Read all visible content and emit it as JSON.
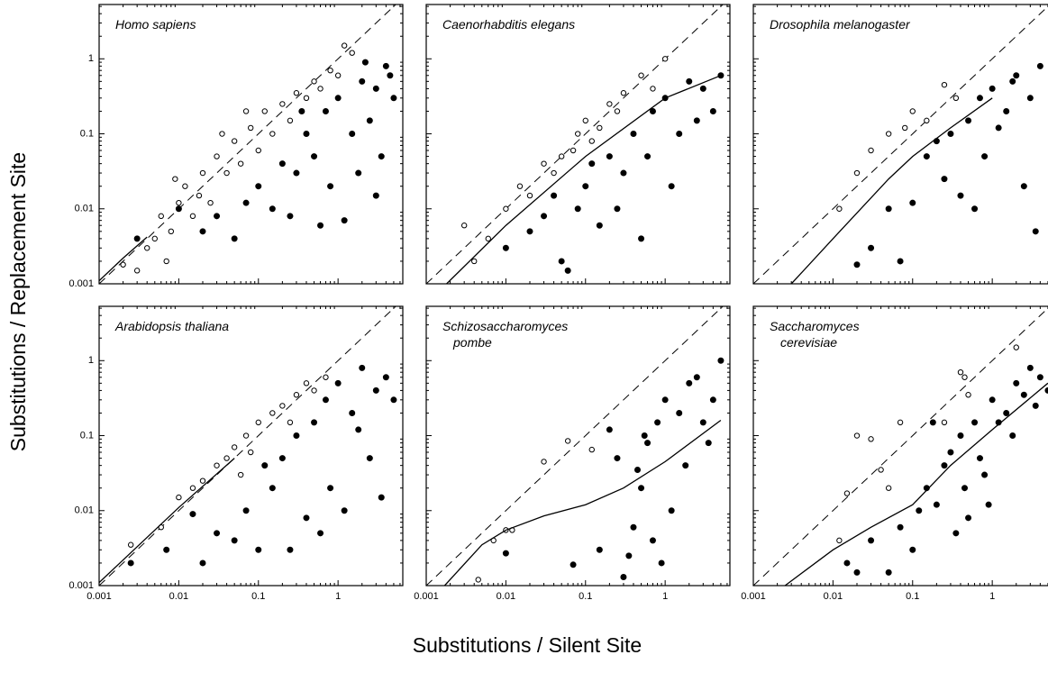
{
  "figure": {
    "x_label": "Substitutions / Silent Site",
    "y_label": "Substitutions / Replacement Site"
  },
  "chart_data": [
    {
      "type": "scatter",
      "title": [
        "Homo sapiens"
      ],
      "log": true,
      "identity_line": true,
      "xlim": [
        0.001,
        6.5
      ],
      "ylim": [
        0.001,
        5.3
      ],
      "xticks": [
        0.001,
        0.01,
        0.1,
        1
      ],
      "yticks": [
        0.001,
        0.01,
        0.1,
        1
      ],
      "series": [
        {
          "marker": "open",
          "color": "#000000",
          "x": [
            0.002,
            0.003,
            0.004,
            0.005,
            0.006,
            0.008,
            0.01,
            0.012,
            0.015,
            0.02,
            0.025,
            0.03,
            0.04,
            0.05,
            0.06,
            0.08,
            0.1,
            0.12,
            0.15,
            0.2,
            0.25,
            0.3,
            0.4,
            0.5,
            0.6,
            0.8,
            1,
            1.2,
            1.5,
            0.007,
            0.009,
            0.018,
            0.035,
            0.07
          ],
          "values": [
            0.0018,
            0.0015,
            0.003,
            0.004,
            0.008,
            0.005,
            0.012,
            0.02,
            0.008,
            0.03,
            0.012,
            0.05,
            0.03,
            0.08,
            0.04,
            0.12,
            0.06,
            0.2,
            0.1,
            0.25,
            0.15,
            0.35,
            0.3,
            0.5,
            0.4,
            0.7,
            0.6,
            1.5,
            1.2,
            0.002,
            0.025,
            0.015,
            0.1,
            0.2
          ]
        },
        {
          "marker": "filled",
          "color": "#000000",
          "x": [
            0.003,
            0.01,
            0.02,
            0.03,
            0.05,
            0.07,
            0.1,
            0.15,
            0.2,
            0.3,
            0.4,
            0.5,
            0.7,
            1,
            1.5,
            2,
            3,
            4,
            5,
            0.8,
            1.2,
            2.5,
            3.5,
            0.6,
            0.25,
            1.8,
            4.5,
            0.35,
            2.2,
            3
          ],
          "values": [
            0.004,
            0.01,
            0.005,
            0.008,
            0.004,
            0.012,
            0.02,
            0.01,
            0.04,
            0.03,
            0.1,
            0.05,
            0.2,
            0.3,
            0.1,
            0.5,
            0.4,
            0.8,
            0.3,
            0.02,
            0.007,
            0.15,
            0.05,
            0.006,
            0.008,
            0.03,
            0.6,
            0.2,
            0.9,
            0.015
          ]
        },
        {
          "marker": "line",
          "color": "#000000",
          "x": [
            0.001,
            0.002,
            0.004
          ],
          "values": [
            0.0011,
            0.0022,
            0.0042
          ]
        }
      ]
    },
    {
      "type": "scatter",
      "title": [
        "Caenorhabditis elegans"
      ],
      "log": true,
      "identity_line": true,
      "xlim": [
        0.001,
        6.5
      ],
      "ylim": [
        0.001,
        5.3
      ],
      "xticks": [
        0.001,
        0.01,
        0.1,
        1
      ],
      "yticks": [
        0.001,
        0.01,
        0.1,
        1
      ],
      "series": [
        {
          "marker": "open",
          "color": "#000000",
          "x": [
            0.003,
            0.004,
            0.006,
            0.01,
            0.015,
            0.02,
            0.03,
            0.05,
            0.07,
            0.1,
            0.15,
            0.2,
            0.3,
            0.5,
            0.7,
            1,
            0.04,
            0.08,
            0.12,
            0.25
          ],
          "values": [
            0.006,
            0.002,
            0.004,
            0.01,
            0.02,
            0.015,
            0.04,
            0.05,
            0.06,
            0.15,
            0.12,
            0.25,
            0.35,
            0.6,
            0.4,
            1,
            0.03,
            0.1,
            0.08,
            0.2
          ]
        },
        {
          "marker": "filled",
          "color": "#000000",
          "x": [
            0.01,
            0.02,
            0.03,
            0.05,
            0.08,
            0.1,
            0.15,
            0.2,
            0.3,
            0.4,
            0.5,
            0.7,
            1,
            1.5,
            2,
            3,
            4,
            5,
            0.06,
            0.25,
            0.6,
            1.2,
            2.5,
            0.04,
            0.12
          ],
          "values": [
            0.003,
            0.005,
            0.008,
            0.002,
            0.01,
            0.02,
            0.006,
            0.05,
            0.03,
            0.1,
            0.004,
            0.2,
            0.3,
            0.1,
            0.5,
            0.4,
            0.2,
            0.6,
            0.0015,
            0.01,
            0.05,
            0.02,
            0.15,
            0.015,
            0.04
          ]
        },
        {
          "marker": "line",
          "color": "#000000",
          "x": [
            0.0018,
            0.01,
            0.1,
            1,
            5
          ],
          "values": [
            0.001,
            0.006,
            0.05,
            0.3,
            0.6
          ]
        }
      ]
    },
    {
      "type": "scatter",
      "title": [
        "Drosophila melanogaster"
      ],
      "log": true,
      "identity_line": true,
      "xlim": [
        0.001,
        6.5
      ],
      "ylim": [
        0.001,
        5.3
      ],
      "xticks": [
        0.001,
        0.01,
        0.1,
        1
      ],
      "yticks": [
        0.001,
        0.01,
        0.1,
        1
      ],
      "series": [
        {
          "marker": "open",
          "color": "#000000",
          "x": [
            0.012,
            0.02,
            0.03,
            0.05,
            0.08,
            0.1,
            0.15,
            0.25,
            0.35
          ],
          "values": [
            0.01,
            0.03,
            0.06,
            0.1,
            0.12,
            0.2,
            0.15,
            0.45,
            0.3
          ]
        },
        {
          "marker": "filled",
          "color": "#000000",
          "x": [
            0.02,
            0.03,
            0.05,
            0.07,
            0.1,
            0.15,
            0.2,
            0.3,
            0.5,
            0.7,
            1,
            1.5,
            2,
            3,
            4,
            0.8,
            1.2,
            2.5,
            0.4,
            0.6,
            3.5,
            0.25,
            1.8
          ],
          "values": [
            0.0018,
            0.003,
            0.01,
            0.002,
            0.012,
            0.05,
            0.08,
            0.1,
            0.15,
            0.3,
            0.4,
            0.2,
            0.6,
            0.3,
            0.8,
            0.05,
            0.12,
            0.02,
            0.015,
            0.01,
            0.005,
            0.025,
            0.5
          ]
        },
        {
          "marker": "line",
          "color": "#000000",
          "x": [
            0.003,
            0.01,
            0.05,
            0.1,
            0.3,
            1
          ],
          "values": [
            0.001,
            0.004,
            0.025,
            0.05,
            0.12,
            0.3
          ]
        }
      ]
    },
    {
      "type": "scatter",
      "title": [
        "Arabidopsis thaliana"
      ],
      "log": true,
      "identity_line": true,
      "xlim": [
        0.001,
        6.5
      ],
      "ylim": [
        0.001,
        5.3
      ],
      "xticks": [
        0.001,
        0.01,
        0.1,
        1
      ],
      "yticks": [
        0.001,
        0.01,
        0.1,
        1
      ],
      "series": [
        {
          "marker": "open",
          "color": "#000000",
          "x": [
            0.0025,
            0.006,
            0.01,
            0.015,
            0.02,
            0.03,
            0.04,
            0.05,
            0.07,
            0.1,
            0.15,
            0.2,
            0.3,
            0.4,
            0.5,
            0.7,
            0.08,
            0.25,
            0.06
          ],
          "values": [
            0.0035,
            0.006,
            0.015,
            0.02,
            0.025,
            0.04,
            0.05,
            0.07,
            0.1,
            0.15,
            0.2,
            0.25,
            0.35,
            0.5,
            0.4,
            0.6,
            0.06,
            0.15,
            0.03
          ]
        },
        {
          "marker": "filled",
          "color": "#000000",
          "x": [
            0.0025,
            0.007,
            0.015,
            0.02,
            0.03,
            0.05,
            0.07,
            0.1,
            0.15,
            0.2,
            0.3,
            0.5,
            0.7,
            1,
            1.5,
            2,
            3,
            4,
            5,
            0.4,
            0.8,
            1.2,
            2.5,
            0.25,
            0.6,
            3.5,
            0.12,
            1.8
          ],
          "values": [
            0.002,
            0.003,
            0.009,
            0.002,
            0.005,
            0.004,
            0.01,
            0.003,
            0.02,
            0.05,
            0.1,
            0.15,
            0.3,
            0.5,
            0.2,
            0.8,
            0.4,
            0.6,
            0.3,
            0.008,
            0.02,
            0.01,
            0.05,
            0.003,
            0.005,
            0.015,
            0.04,
            0.12
          ]
        },
        {
          "marker": "line",
          "color": "#000000",
          "x": [
            0.001,
            0.01,
            0.05
          ],
          "values": [
            0.0011,
            0.011,
            0.05
          ]
        }
      ]
    },
    {
      "type": "scatter",
      "title": [
        "Schizosaccharomyces",
        "pombe"
      ],
      "log": true,
      "identity_line": true,
      "xlim": [
        0.001,
        6.5
      ],
      "ylim": [
        0.001,
        5.3
      ],
      "xticks": [
        0.001,
        0.01,
        0.1,
        1
      ],
      "yticks": [
        0.001,
        0.01,
        0.1,
        1
      ],
      "series": [
        {
          "marker": "open",
          "color": "#000000",
          "x": [
            0.0045,
            0.007,
            0.01,
            0.012,
            0.03,
            0.06,
            0.12
          ],
          "values": [
            0.0012,
            0.004,
            0.0055,
            0.0055,
            0.045,
            0.085,
            0.065
          ]
        },
        {
          "marker": "filled",
          "color": "#000000",
          "x": [
            0.01,
            0.07,
            0.15,
            0.2,
            0.25,
            0.3,
            0.4,
            0.5,
            0.6,
            0.7,
            0.8,
            1,
            1.2,
            1.5,
            2,
            3,
            4,
            5,
            0.35,
            0.45,
            0.9,
            2.5,
            0.55,
            3.5,
            1.8
          ],
          "values": [
            0.0027,
            0.0019,
            0.003,
            0.12,
            0.05,
            0.0013,
            0.006,
            0.02,
            0.08,
            0.004,
            0.15,
            0.3,
            0.01,
            0.2,
            0.5,
            0.15,
            0.3,
            1,
            0.0025,
            0.035,
            0.002,
            0.6,
            0.1,
            0.08,
            0.04
          ]
        },
        {
          "marker": "line",
          "color": "#000000",
          "x": [
            0.0017,
            0.005,
            0.01,
            0.03,
            0.1,
            0.3,
            1,
            5
          ],
          "values": [
            0.001,
            0.0035,
            0.0055,
            0.0085,
            0.012,
            0.02,
            0.045,
            0.16
          ]
        }
      ]
    },
    {
      "type": "scatter",
      "title": [
        "Saccharomyces",
        "cerevisiae"
      ],
      "log": true,
      "identity_line": true,
      "xlim": [
        0.001,
        6.5
      ],
      "ylim": [
        0.001,
        5.3
      ],
      "xticks": [
        0.001,
        0.01,
        0.1,
        1
      ],
      "yticks": [
        0.001,
        0.01,
        0.1,
        1
      ],
      "series": [
        {
          "marker": "open",
          "color": "#000000",
          "x": [
            0.012,
            0.015,
            0.02,
            0.03,
            0.04,
            0.05,
            0.07,
            0.4,
            0.45,
            0.5,
            0.25,
            2
          ],
          "values": [
            0.004,
            0.017,
            0.1,
            0.09,
            0.035,
            0.02,
            0.15,
            0.7,
            0.6,
            0.35,
            0.15,
            1.5
          ]
        },
        {
          "marker": "filled",
          "color": "#000000",
          "x": [
            0.015,
            0.02,
            0.03,
            0.05,
            0.07,
            0.1,
            0.12,
            0.15,
            0.2,
            0.25,
            0.3,
            0.4,
            0.5,
            0.6,
            0.7,
            0.8,
            1,
            1.2,
            1.5,
            2,
            2.5,
            3,
            4,
            5,
            0.35,
            0.9,
            1.8,
            3.5,
            0.45,
            0.18
          ],
          "values": [
            0.002,
            0.0015,
            0.004,
            0.0015,
            0.006,
            0.003,
            0.01,
            0.02,
            0.012,
            0.04,
            0.06,
            0.1,
            0.008,
            0.15,
            0.05,
            0.03,
            0.3,
            0.15,
            0.2,
            0.5,
            0.35,
            0.8,
            0.6,
            0.4,
            0.005,
            0.012,
            0.1,
            0.25,
            0.02,
            0.15
          ]
        },
        {
          "marker": "line",
          "color": "#000000",
          "x": [
            0.0025,
            0.01,
            0.03,
            0.1,
            0.3,
            1,
            5
          ],
          "values": [
            0.001,
            0.003,
            0.006,
            0.012,
            0.04,
            0.12,
            0.5
          ]
        }
      ]
    }
  ]
}
